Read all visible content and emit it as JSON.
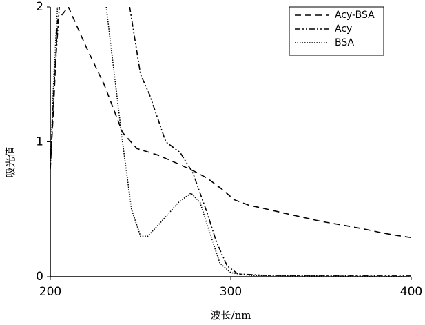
{
  "chart_data": {
    "type": "line",
    "xlabel": "波长/nm",
    "ylabel": "吸光值",
    "xlim": [
      200,
      400
    ],
    "ylim": [
      0,
      2
    ],
    "xticks": [
      200,
      300,
      400
    ],
    "yticks": [
      0,
      1,
      2
    ],
    "legend": "upper right",
    "series": [
      {
        "name": "Acy-BSA",
        "color": "#000000",
        "dash": "9,6",
        "x": [
          200,
          202,
          204,
          210,
          220,
          230,
          240,
          248,
          260,
          272,
          280,
          287,
          295,
          302,
          310,
          317,
          330,
          340,
          350,
          363,
          375,
          382,
          390,
          400
        ],
        "values": [
          0.8,
          1.3,
          1.9,
          2.0,
          1.7,
          1.42,
          1.07,
          0.95,
          0.9,
          0.83,
          0.78,
          0.73,
          0.65,
          0.57,
          0.53,
          0.51,
          0.47,
          0.44,
          0.41,
          0.38,
          0.35,
          0.33,
          0.31,
          0.29
        ]
      },
      {
        "name": "Acy",
        "color": "#000000",
        "dash": "8,3,2,3,2,3",
        "x": [
          200,
          202,
          205,
          230,
          244,
          250,
          255,
          264,
          272,
          279,
          287,
          292,
          298,
          304,
          320,
          400
        ],
        "values": [
          0.8,
          1.4,
          2.0,
          null,
          2.0,
          1.5,
          1.35,
          1.0,
          0.92,
          0.77,
          0.47,
          0.26,
          0.08,
          0.02,
          0.01,
          0.01
        ]
      },
      {
        "name": "BSA",
        "color": "#000000",
        "dash": "1.5,2",
        "x": [
          200,
          202,
          204,
          220,
          231,
          240,
          245,
          250,
          254,
          261,
          271,
          278,
          283,
          289,
          294,
          300,
          310,
          400
        ],
        "values": [
          0.8,
          1.5,
          2.0,
          null,
          2.0,
          1.0,
          0.5,
          0.3,
          0.3,
          0.4,
          0.55,
          0.62,
          0.55,
          0.3,
          0.1,
          0.03,
          0.01,
          0.0
        ]
      }
    ]
  }
}
